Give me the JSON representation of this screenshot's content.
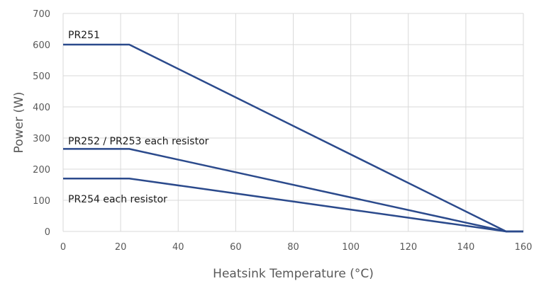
{
  "chart_data": {
    "type": "line",
    "title": "",
    "xlabel": "Heatsink Temperature (°C)",
    "ylabel": "Power (W)",
    "xlim": [
      0,
      160
    ],
    "ylim": [
      0,
      700
    ],
    "x_ticks": [
      0,
      20,
      40,
      60,
      80,
      100,
      120,
      140,
      160
    ],
    "y_ticks": [
      0,
      100,
      200,
      300,
      400,
      500,
      600,
      700
    ],
    "grid": true,
    "legend": "none",
    "line_color": "#2b4a8c",
    "series": [
      {
        "name": "PR251",
        "points": [
          [
            0,
            600
          ],
          [
            23,
            600
          ],
          [
            154,
            0
          ],
          [
            160,
            0
          ]
        ]
      },
      {
        "name": "PR252 / PR253 each resistor",
        "points": [
          [
            0,
            265
          ],
          [
            23,
            265
          ],
          [
            154,
            0
          ],
          [
            160,
            0
          ]
        ]
      },
      {
        "name": "PR254 each resistor",
        "points": [
          [
            0,
            170
          ],
          [
            23,
            170
          ],
          [
            154,
            0
          ],
          [
            160,
            0
          ]
        ]
      }
    ]
  }
}
